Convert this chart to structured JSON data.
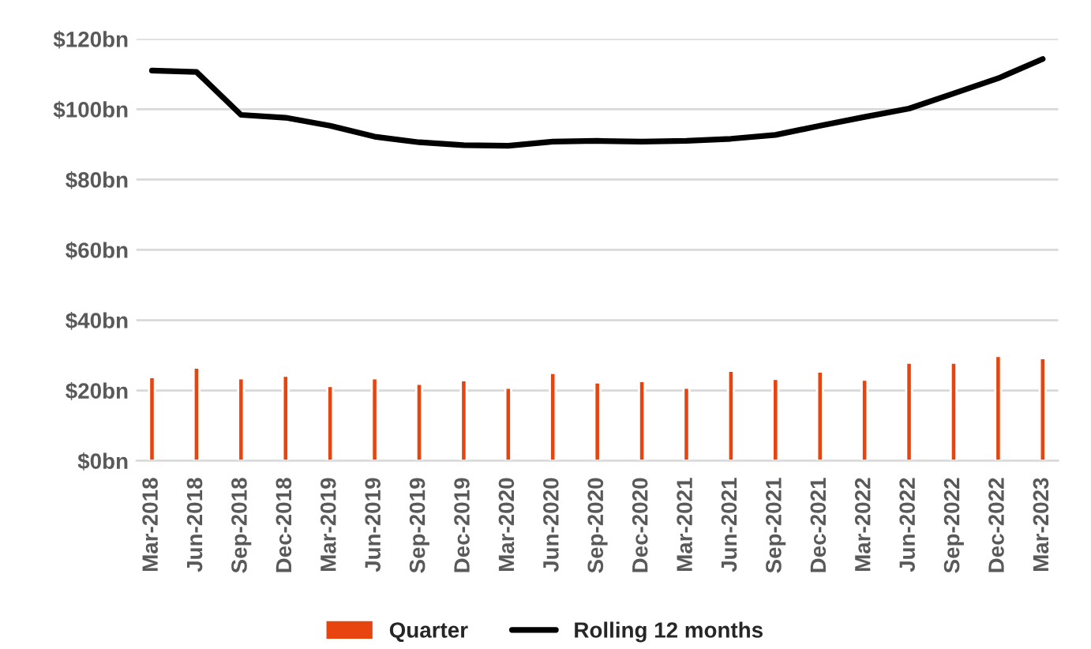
{
  "chart_data": {
    "type": "bar",
    "categories": [
      "Mar-2018",
      "Jun-2018",
      "Sep-2018",
      "Dec-2018",
      "Mar-2019",
      "Jun-2019",
      "Sep-2019",
      "Dec-2019",
      "Mar-2020",
      "Jun-2020",
      "Sep-2020",
      "Dec-2020",
      "Mar-2021",
      "Jun-2021",
      "Sep-2021",
      "Dec-2021",
      "Mar-2022",
      "Jun-2022",
      "Sep-2022",
      "Dec-2022",
      "Mar-2023"
    ],
    "series": [
      {
        "name": "Quarter",
        "color": "#e8440f",
        "values": [
          23.8,
          26.5,
          23.5,
          24.2,
          21.3,
          23.5,
          21.9,
          22.9,
          20.8,
          25.0,
          22.3,
          22.7,
          20.8,
          25.6,
          23.3,
          25.4,
          23.1,
          27.9,
          27.9,
          29.8,
          29.2
        ]
      },
      {
        "name": "Rolling 12 months",
        "type": "line",
        "color": "#000000",
        "values": [
          111.0,
          110.6,
          98.4,
          97.6,
          95.3,
          92.2,
          90.6,
          89.8,
          89.6,
          90.8,
          91.0,
          90.8,
          91.0,
          91.6,
          92.7,
          95.3,
          97.8,
          100.2,
          104.5,
          108.8,
          114.3
        ]
      }
    ],
    "ylim": [
      0,
      120
    ],
    "yticks": [
      {
        "value": 0,
        "label": "$0bn"
      },
      {
        "value": 20,
        "label": "$20bn"
      },
      {
        "value": 40,
        "label": "$40bn"
      },
      {
        "value": 60,
        "label": "$60bn"
      },
      {
        "value": 80,
        "label": "$80bn"
      },
      {
        "value": 100,
        "label": "$100bn"
      },
      {
        "value": 120,
        "label": "$120bn"
      }
    ],
    "grid": "y",
    "legend": "bottom",
    "marker": "none",
    "line_style": "solid"
  }
}
